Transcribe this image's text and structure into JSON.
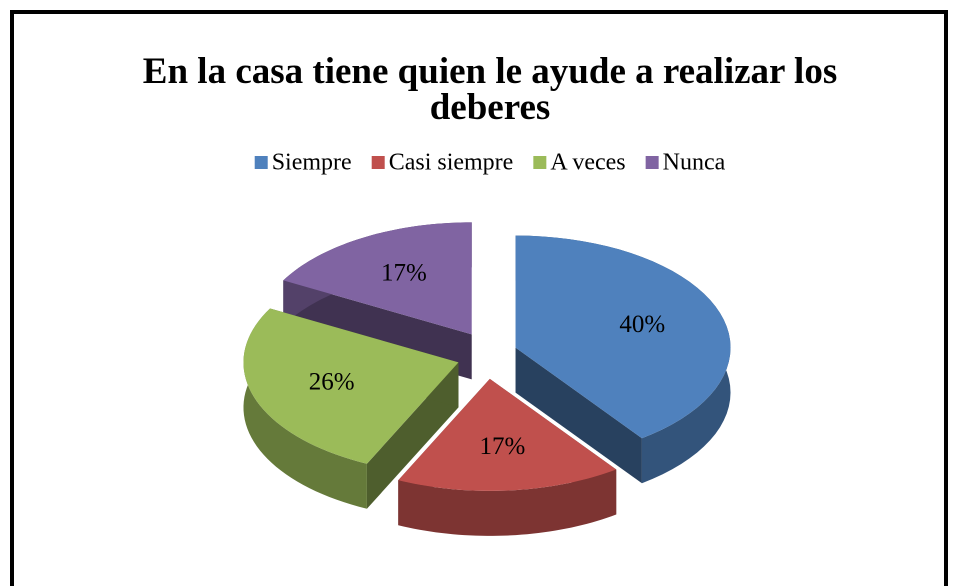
{
  "chart_data": {
    "type": "pie",
    "title": "En la casa tiene quien le ayude a realizar los deberes",
    "categories": [
      "Siempre",
      "Casi siempre",
      "A veces",
      "Nunca"
    ],
    "values": [
      40,
      17,
      26,
      17
    ],
    "value_labels": [
      "40%",
      "17%",
      "26%",
      "17%"
    ],
    "colors": [
      "#4f81bd",
      "#c0504d",
      "#9bbb59",
      "#8064a2"
    ],
    "legend": "top"
  }
}
